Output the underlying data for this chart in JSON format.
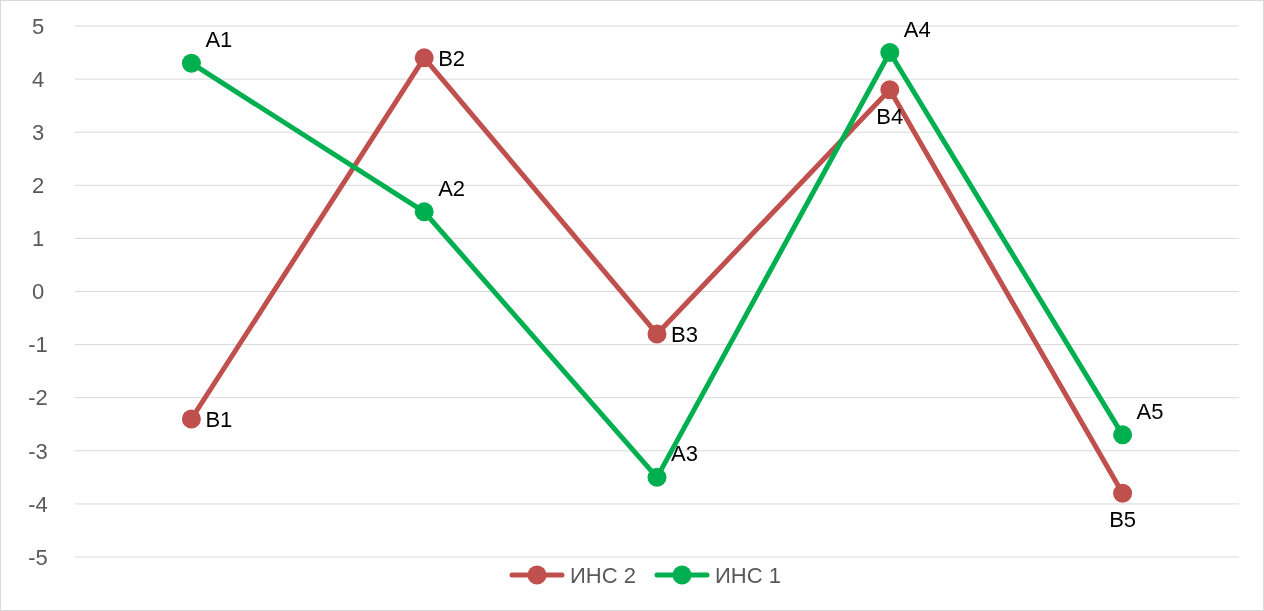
{
  "chart_data": {
    "type": "line",
    "categories": [
      null,
      null,
      null,
      null,
      null
    ],
    "series": [
      {
        "name": "ИНС 2",
        "color": "#c0504d",
        "values": [
          -2.4,
          4.4,
          -0.8,
          3.8,
          -3.8
        ],
        "value_labels": [
          "B1",
          "B2",
          "B3",
          "B4",
          "B5"
        ]
      },
      {
        "name": "ИНС 1",
        "color": "#00b050",
        "values": [
          4.3,
          1.5,
          -3.5,
          4.5,
          -2.7
        ],
        "value_labels": [
          "A1",
          "A2",
          "A3",
          "A4",
          "A5"
        ]
      }
    ],
    "ylim": [
      -5,
      5
    ],
    "yticks": [
      -5,
      -4,
      -3,
      -2,
      -1,
      0,
      1,
      2,
      3,
      4,
      5
    ],
    "grid": "y",
    "legend": "bottom",
    "marker": "circle",
    "line_style": "solid"
  }
}
